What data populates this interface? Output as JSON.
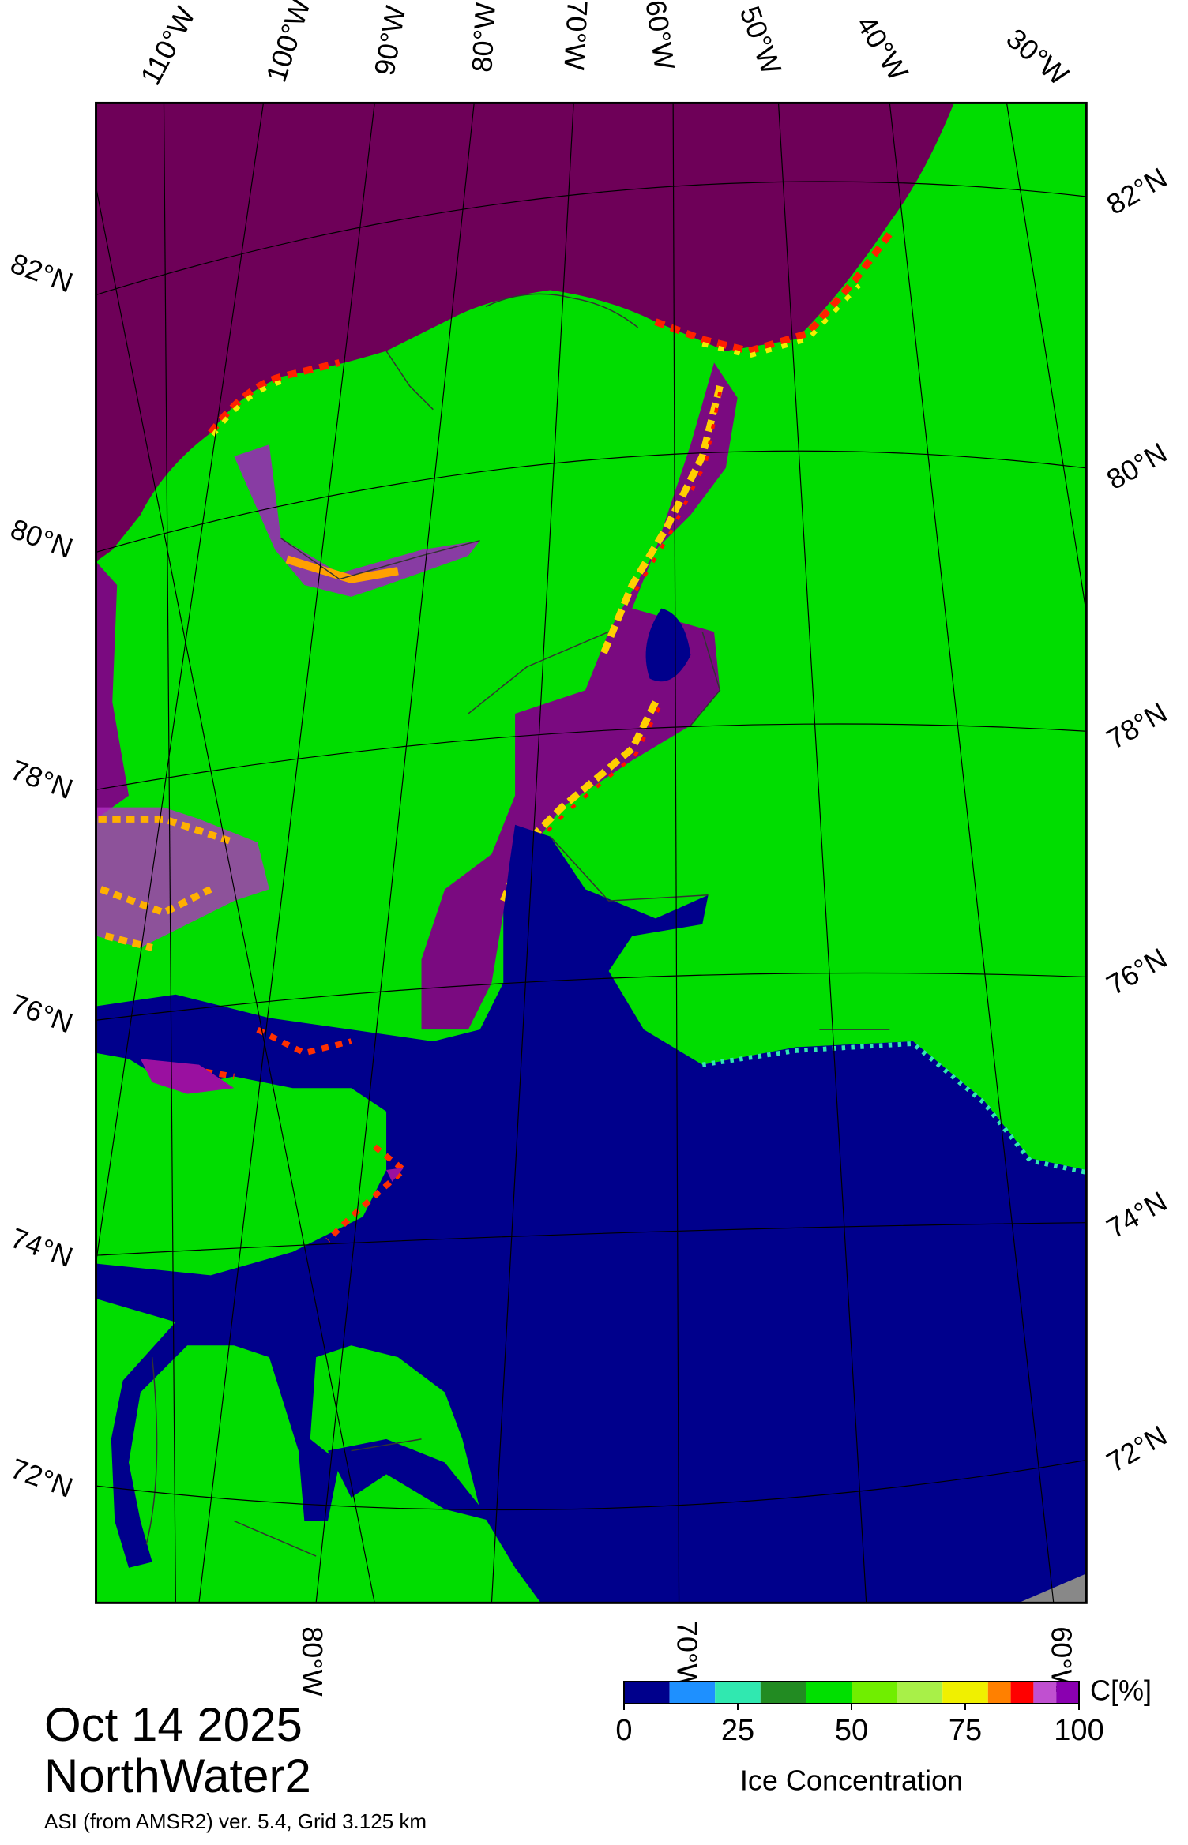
{
  "map": {
    "title": "Oct 14 2025",
    "region": "NorthWater2",
    "subtitle": "ASI (from AMSR2) ver. 5.4,  Grid 3.125 km",
    "top_labels": [
      "110°W",
      "100°W",
      "90°W",
      "80°W",
      "70°W",
      "60°W",
      "50°W",
      "40°W",
      "30°W"
    ],
    "right_labels": [
      "82°N",
      "80°N",
      "78°N",
      "76°N",
      "74°N",
      "72°N"
    ],
    "left_labels": [
      "82°N",
      "80°N",
      "78°N",
      "76°N",
      "74°N",
      "72°N"
    ],
    "bottom_labels": [
      "80°W",
      "70°W",
      "60°W"
    ],
    "colorbar": {
      "label": "Ice Concentration",
      "unit": "C[%]",
      "lim": [
        0,
        100
      ],
      "ticks": [
        0,
        25,
        50,
        75,
        100
      ],
      "bounds": [
        0,
        10,
        20,
        30,
        40,
        50,
        60,
        70,
        80,
        85,
        90,
        95,
        100
      ],
      "colors": [
        "#00008c",
        "#1e90ff",
        "#30e8b0",
        "#228b22",
        "#00e000",
        "#70ee00",
        "#a8f048",
        "#f0f000",
        "#ff8000",
        "#ff0000",
        "#c050d0",
        "#8a00b0"
      ]
    }
  }
}
